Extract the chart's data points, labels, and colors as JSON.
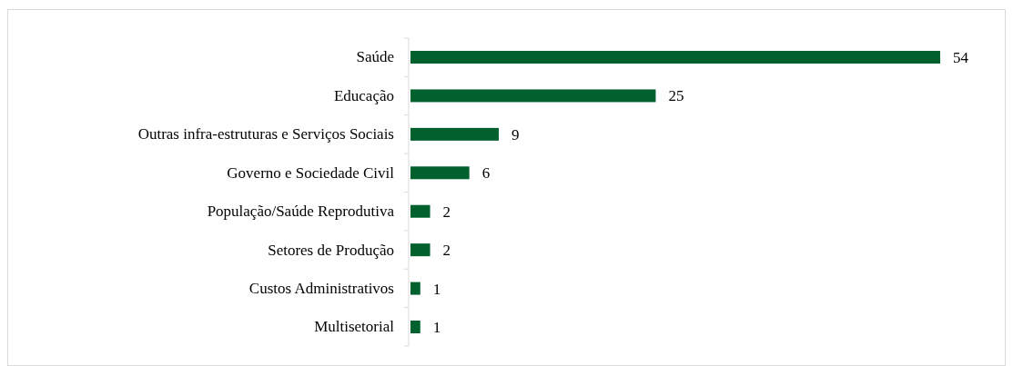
{
  "chart_data": {
    "type": "bar",
    "orientation": "horizontal",
    "categories": [
      "Saúde",
      "Educação",
      "Outras infra-estruturas e Serviços Sociais",
      "Governo e Sociedade Civil",
      "População/Saúde Reprodutiva",
      "Setores de Produção",
      "Custos Administrativos",
      "Multisetorial"
    ],
    "values": [
      54,
      25,
      9,
      6,
      2,
      2,
      1,
      1
    ],
    "color": "#00612e",
    "data_labels": true
  }
}
